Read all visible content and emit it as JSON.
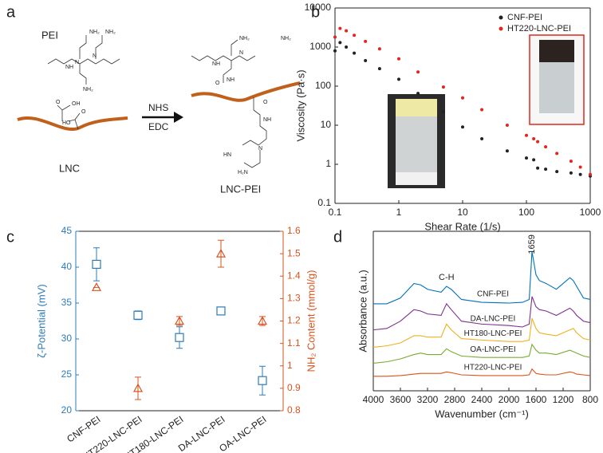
{
  "panel_labels": [
    "a",
    "b",
    "c",
    "d"
  ],
  "diagram": {
    "reagent": "PEI",
    "substrate": "LNC",
    "conditions": [
      "NHS",
      "EDC"
    ],
    "product": "LNC-PEI",
    "groups": [
      "NH₂",
      "NH₂",
      "NH₂",
      "NH",
      "N",
      "N",
      "O",
      "OH",
      "O",
      "HO",
      "NH₂",
      "NH",
      "O",
      "NH",
      "O",
      "NH",
      "NH₂",
      "HN",
      "N",
      "N",
      "H₂N"
    ]
  },
  "chart_data": [
    {
      "type": "scatter",
      "xlabel": "Shear Rate (1/s)",
      "ylabel": "Viscosity (Pa·s)",
      "log_x": true,
      "log_y": true,
      "xlim": [
        0.1,
        1000
      ],
      "ylim": [
        0.1,
        10000
      ],
      "xticks": [
        0.1,
        1,
        10,
        100,
        1000
      ],
      "yticks": [
        0.1,
        1,
        10,
        100,
        1000,
        10000
      ],
      "legend": "upper right",
      "x": [
        0.1,
        0.12,
        0.15,
        0.2,
        0.3,
        0.5,
        1,
        2,
        5,
        10,
        20,
        50,
        100,
        130,
        150,
        200,
        300,
        500,
        700,
        1000
      ],
      "series": [
        {
          "name": "CNF-PEI",
          "color": "#222222",
          "values": [
            800,
            1300,
            1000,
            700,
            450,
            280,
            150,
            65,
            22,
            9,
            4.5,
            2.2,
            1.45,
            1.3,
            0.8,
            0.75,
            0.65,
            0.6,
            0.55,
            0.5
          ]
        },
        {
          "name": "HT220-LNC-PEI",
          "color": "#e0261d",
          "values": [
            1800,
            3000,
            2600,
            2000,
            1400,
            900,
            500,
            230,
            95,
            50,
            25,
            10,
            5.5,
            4.5,
            3.8,
            2.8,
            1.9,
            1.2,
            0.85,
            0.55
          ]
        }
      ]
    },
    {
      "type": "errorbar",
      "ylabel": "ζ-Potential (mV)",
      "y2label": "NH₂ Content (mmol/g)",
      "categories": [
        "CNF-PEI",
        "HT220-LNC-PEI",
        "HT180-LNC-PEI",
        "DA-LNC-PEI",
        "OA-LNC-PEI"
      ],
      "ylim": [
        20,
        45
      ],
      "yticks": [
        20,
        25,
        30,
        35,
        40,
        45
      ],
      "y2lim": [
        0.8,
        1.6
      ],
      "y2ticks": [
        0.8,
        0.9,
        1,
        1.1,
        1.2,
        1.3,
        1.4,
        1.5,
        1.6
      ],
      "series": [
        {
          "name": "ζ-Potential",
          "color": "#2b7bba",
          "marker": "square",
          "values": [
            40.4,
            33.3,
            30.2,
            33.9,
            24.2
          ],
          "errors": [
            2.3,
            0.6,
            1.5,
            0.3,
            2.0
          ]
        },
        {
          "name": "NH₂ Content",
          "color": "#d9531e",
          "marker": "triangle",
          "axis": "y2",
          "values": [
            1.35,
            0.9,
            1.2,
            1.5,
            1.2
          ],
          "errors": [
            0,
            0.05,
            0.02,
            0.06,
            0.02
          ]
        }
      ]
    },
    {
      "type": "line",
      "xlabel": "Wavenumber (cm⁻¹)",
      "ylabel": "Absorbance (a.u.)",
      "xlim": [
        4000,
        800
      ],
      "ylim": [
        0,
        11
      ],
      "xticks": [
        4000,
        3600,
        3200,
        2800,
        2400,
        2000,
        1600,
        1200,
        800
      ],
      "annotations": [
        {
          "text": "C-H",
          "x": 2920,
          "y": 7.8
        },
        {
          "text": "1659",
          "x": 1659,
          "y": 10.1
        }
      ],
      "x": [
        4000,
        3800,
        3600,
        3400,
        3300,
        3200,
        3000,
        2920,
        2850,
        2700,
        2400,
        2000,
        1800,
        1700,
        1659,
        1600,
        1550,
        1450,
        1300,
        1100,
        1050,
        1000,
        900,
        800
      ],
      "series": [
        {
          "name": "CNF-PEI",
          "color": "#0072bd",
          "values": [
            6.0,
            6.0,
            6.4,
            7.4,
            7.3,
            7.0,
            6.8,
            7.2,
            7.0,
            6.3,
            6.1,
            6.05,
            6.1,
            6.3,
            9.6,
            8.0,
            7.6,
            7.4,
            7.0,
            7.8,
            7.6,
            7.2,
            6.4,
            6.3
          ]
        },
        {
          "name": "DA-LNC-PEI",
          "color": "#7e2f8e",
          "values": [
            4.2,
            4.3,
            4.8,
            5.6,
            5.5,
            5.3,
            5.2,
            6.0,
            5.6,
            4.8,
            4.6,
            4.5,
            4.4,
            4.6,
            6.5,
            5.8,
            5.6,
            5.5,
            5.2,
            5.7,
            5.5,
            5.2,
            4.8,
            4.7
          ]
        },
        {
          "name": "HT180-LNC-PEI",
          "color": "#edb120",
          "values": [
            3.0,
            3.1,
            3.3,
            3.8,
            3.8,
            3.7,
            3.7,
            4.6,
            4.2,
            3.6,
            3.5,
            3.4,
            3.4,
            3.5,
            5.0,
            4.3,
            4.0,
            3.9,
            3.8,
            4.2,
            4.3,
            4.0,
            3.6,
            3.5
          ]
        },
        {
          "name": "OA-LNC-PEI",
          "color": "#77ac30",
          "values": [
            1.9,
            2.0,
            2.2,
            2.5,
            2.6,
            2.5,
            2.5,
            2.9,
            2.7,
            2.4,
            2.3,
            2.3,
            2.3,
            2.4,
            3.2,
            2.8,
            2.6,
            2.6,
            2.5,
            2.8,
            2.7,
            2.6,
            2.4,
            2.3
          ]
        },
        {
          "name": "HT220-LNC-PEI",
          "color": "#d95319",
          "values": [
            1.0,
            1.0,
            1.05,
            1.15,
            1.2,
            1.2,
            1.2,
            1.3,
            1.25,
            1.1,
            1.05,
            1.05,
            1.05,
            1.1,
            1.5,
            1.2,
            1.15,
            1.1,
            1.1,
            1.3,
            1.25,
            1.15,
            1.1,
            1.05
          ]
        }
      ]
    }
  ]
}
